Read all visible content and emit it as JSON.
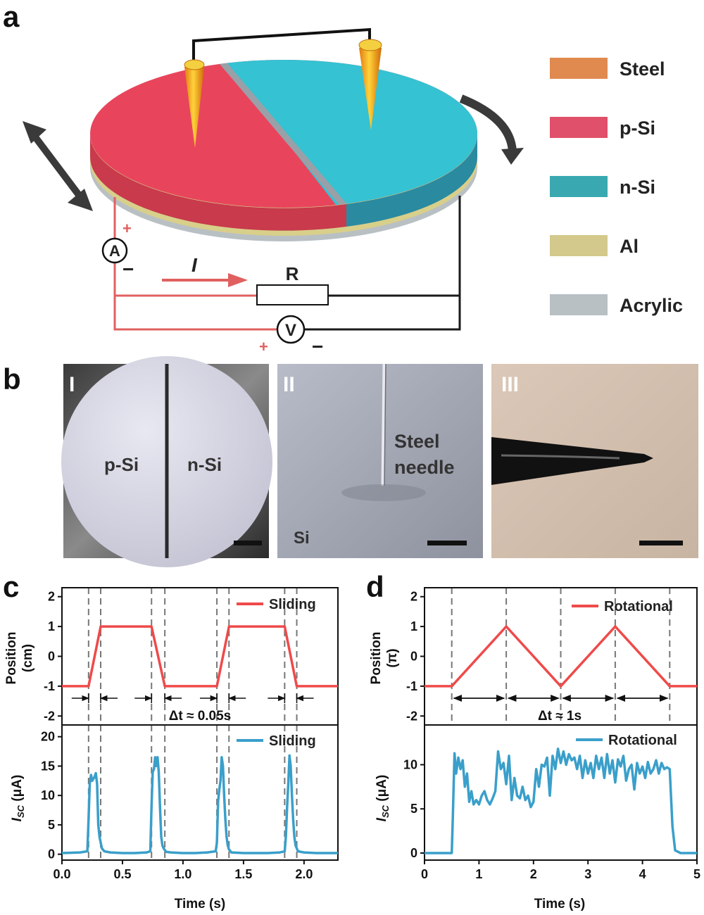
{
  "panel_labels": {
    "a": "a",
    "b": "b",
    "c": "c",
    "d": "d"
  },
  "panel_a": {
    "legend": [
      {
        "label": "Steel",
        "color": "#e08a50"
      },
      {
        "label": "p-Si",
        "color": "#e0506a"
      },
      {
        "label": "n-Si",
        "color": "#3aa8b0"
      },
      {
        "label": "Al",
        "color": "#d4c98c"
      },
      {
        "label": "Acrylic",
        "color": "#b8c0c4"
      }
    ],
    "circuit": {
      "ammeter": "A",
      "voltmeter": "V",
      "resistor": "R",
      "current": "I",
      "plus": "+",
      "minus": "−"
    },
    "colors": {
      "p_si": "#e8455c",
      "n_si": "#35c2d2",
      "circuit_red": "#e06060",
      "circuit_black": "#1a1a1a"
    }
  },
  "panel_b": {
    "photo1": {
      "roman": "I",
      "left_label": "p-Si",
      "right_label": "n-Si"
    },
    "photo2": {
      "roman": "II",
      "needle_label_1": "Steel",
      "needle_label_2": "needle",
      "surface_label": "Si"
    },
    "photo3": {
      "roman": "III"
    }
  },
  "panel_c": {
    "position_ylabel_1": "Position",
    "position_ylabel_2": "(cm)",
    "current_ylabel": "I",
    "current_ylabel_sub": "SC",
    "current_ylabel_unit": " (μA)",
    "xlabel": "Time (s)",
    "annotation": "Δt ≈ 0.05s"
  },
  "panel_d": {
    "position_ylabel_1": "Position",
    "position_ylabel_2": "(π)",
    "current_ylabel": "I",
    "current_ylabel_sub": "SC",
    "current_ylabel_unit": " (μA)",
    "xlabel": "Time (s)",
    "annotation": "Δt ≈ 1s"
  },
  "chart_data": [
    {
      "id": "c-position",
      "type": "line",
      "series": [
        {
          "name": "Sliding",
          "color": "#ef4a4a",
          "x": [
            0.0,
            0.22,
            0.32,
            0.74,
            0.85,
            1.28,
            1.38,
            1.84,
            1.94,
            2.28
          ],
          "y": [
            -1,
            -1,
            1,
            1,
            -1,
            -1,
            1,
            1,
            -1,
            -1
          ]
        }
      ],
      "xlim": [
        0,
        2.28
      ],
      "ylim": [
        -2.3,
        2.3
      ],
      "yticks": [
        -2,
        -1,
        0,
        1,
        2
      ],
      "dashed_x": [
        0.22,
        0.32,
        0.74,
        0.85,
        1.28,
        1.38,
        1.84,
        1.94
      ]
    },
    {
      "id": "c-current",
      "type": "line",
      "series": [
        {
          "name": "Sliding",
          "color": "#3a9fca",
          "x": [
            0.0,
            0.15,
            0.21,
            0.22,
            0.23,
            0.24,
            0.25,
            0.27,
            0.28,
            0.29,
            0.3,
            0.31,
            0.32,
            0.33,
            0.35,
            0.4,
            0.5,
            0.6,
            0.7,
            0.73,
            0.74,
            0.75,
            0.76,
            0.77,
            0.78,
            0.79,
            0.8,
            0.81,
            0.82,
            0.83,
            0.84,
            0.86,
            0.9,
            1.0,
            1.1,
            1.2,
            1.27,
            1.28,
            1.29,
            1.3,
            1.31,
            1.32,
            1.33,
            1.34,
            1.35,
            1.36,
            1.37,
            1.38,
            1.4,
            1.5,
            1.6,
            1.7,
            1.8,
            1.84,
            1.85,
            1.86,
            1.87,
            1.88,
            1.89,
            1.9,
            1.91,
            1.92,
            1.93,
            1.95,
            2.0,
            2.1,
            2.2,
            2.28
          ],
          "y": [
            0.2,
            0.3,
            0.5,
            6.0,
            12.0,
            13.5,
            12.5,
            13.2,
            13.8,
            12.0,
            5.0,
            3.0,
            2.0,
            1.0,
            0.5,
            0.3,
            0.2,
            0.2,
            0.3,
            0.5,
            8.0,
            14.0,
            14.5,
            16.5,
            15.0,
            16.5,
            14.0,
            8.0,
            3.0,
            1.5,
            1.0,
            0.4,
            0.3,
            0.2,
            0.2,
            0.3,
            0.5,
            2.0,
            9.0,
            11.0,
            12.5,
            16.5,
            15.0,
            10.0,
            6.0,
            3.0,
            1.5,
            0.8,
            0.3,
            0.2,
            0.2,
            0.2,
            0.3,
            0.5,
            3.0,
            8.0,
            12.0,
            16.8,
            15.0,
            10.0,
            6.0,
            3.0,
            1.5,
            0.5,
            0.3,
            0.2,
            0.2,
            0.2
          ]
        }
      ],
      "xlim": [
        0,
        2.28
      ],
      "ylim": [
        -1,
        22
      ],
      "xticks": [
        0.0,
        0.5,
        1.0,
        1.5,
        2.0
      ],
      "yticks": [
        0,
        5,
        10,
        15,
        20
      ]
    },
    {
      "id": "d-position",
      "type": "line",
      "series": [
        {
          "name": "Rotational",
          "color": "#ef4a4a",
          "x": [
            0,
            0.5,
            1.5,
            2.5,
            3.5,
            4.5,
            5.0
          ],
          "y": [
            -1,
            -1,
            1,
            -1,
            1,
            -1,
            -1
          ]
        }
      ],
      "xlim": [
        0,
        5
      ],
      "ylim": [
        -2.3,
        2.3
      ],
      "yticks": [
        -2,
        -1,
        0,
        1,
        2
      ],
      "dashed_x": [
        0.5,
        1.5,
        2.5,
        3.5,
        4.5
      ]
    },
    {
      "id": "d-current",
      "type": "line",
      "series": [
        {
          "name": "Rotational",
          "color": "#3a9fca",
          "x": [
            0,
            0.5,
            0.52,
            0.55,
            0.58,
            0.62,
            0.66,
            0.7,
            0.74,
            0.78,
            0.82,
            0.86,
            0.9,
            0.95,
            1.0,
            1.05,
            1.1,
            1.15,
            1.2,
            1.25,
            1.3,
            1.35,
            1.4,
            1.45,
            1.5,
            1.55,
            1.6,
            1.65,
            1.7,
            1.75,
            1.8,
            1.85,
            1.9,
            1.95,
            2.0,
            2.05,
            2.1,
            2.15,
            2.2,
            2.25,
            2.3,
            2.35,
            2.4,
            2.45,
            2.5,
            2.55,
            2.6,
            2.65,
            2.7,
            2.75,
            2.8,
            2.85,
            2.9,
            2.95,
            3.0,
            3.05,
            3.1,
            3.15,
            3.2,
            3.25,
            3.3,
            3.35,
            3.4,
            3.45,
            3.5,
            3.55,
            3.6,
            3.65,
            3.7,
            3.75,
            3.8,
            3.85,
            3.9,
            3.95,
            4.0,
            4.05,
            4.1,
            4.15,
            4.2,
            4.25,
            4.3,
            4.35,
            4.4,
            4.45,
            4.5,
            4.55,
            4.6,
            4.7,
            5.0
          ],
          "y": [
            0,
            0,
            4.0,
            11.3,
            9.0,
            10.8,
            9.5,
            10.5,
            7.5,
            9.0,
            5.8,
            7.0,
            5.5,
            6.0,
            5.5,
            6.5,
            7.0,
            6.0,
            5.5,
            6.2,
            7.0,
            11.5,
            9.5,
            10.2,
            7.8,
            11.0,
            6.0,
            8.5,
            6.5,
            6.2,
            7.5,
            6.0,
            6.5,
            5.2,
            5.8,
            9.5,
            7.5,
            10.0,
            9.8,
            10.8,
            6.5,
            11.0,
            9.5,
            11.8,
            10.2,
            11.5,
            10.0,
            11.2,
            10.5,
            10.8,
            9.5,
            11.0,
            8.5,
            10.5,
            9.0,
            10.2,
            8.5,
            11.0,
            9.5,
            10.8,
            8.5,
            11.2,
            9.0,
            10.5,
            8.0,
            10.6,
            9.8,
            11.0,
            8.2,
            9.5,
            10.0,
            7.2,
            10.2,
            9.0,
            9.8,
            8.5,
            10.3,
            9.0,
            9.5,
            10.5,
            9.0,
            10.2,
            9.5,
            9.7,
            9.5,
            3.0,
            0.3,
            0,
            0
          ]
        }
      ],
      "xlim": [
        0,
        5
      ],
      "ylim": [
        -0.8,
        14.5
      ],
      "xticks": [
        0,
        1,
        2,
        3,
        4,
        5
      ],
      "yticks": [
        0,
        5,
        10
      ]
    }
  ]
}
